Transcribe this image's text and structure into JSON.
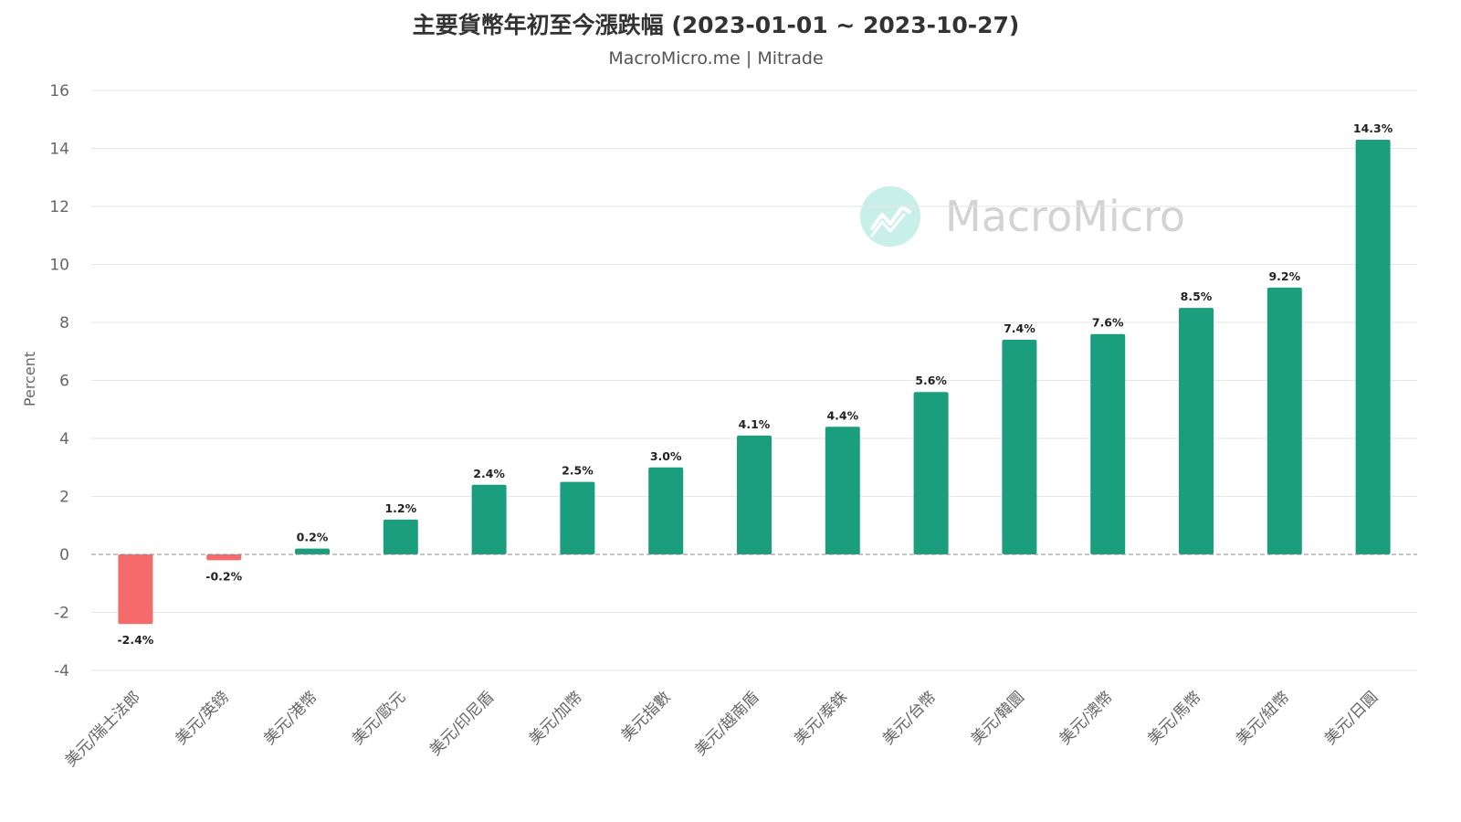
{
  "header": {
    "title": "主要貨幣年初至今漲跌幅 (2023-01-01 ~ 2023-10-27)",
    "subtitle": "MacroMicro.me | Mitrade"
  },
  "watermark": {
    "text": "MacroMicro",
    "icon": "macromicro-logo-icon"
  },
  "colors": {
    "positive": "#1a9e7e",
    "negative": "#f56b6b",
    "grid": "#e6e6e6",
    "zero_line": "#888888"
  },
  "chart_data": {
    "type": "bar",
    "title": "主要貨幣年初至今漲跌幅 (2023-01-01 ~ 2023-10-27)",
    "subtitle": "MacroMicro.me | Mitrade",
    "ylabel": "Percent",
    "xlabel": "",
    "ylim": [
      -4,
      16
    ],
    "yticks": [
      "16",
      "14",
      "12",
      "10",
      "8",
      "6",
      "4",
      "2",
      "0",
      "-2",
      "-4"
    ],
    "grid": true,
    "legend": "none",
    "categories": [
      "美元/瑞士法郎",
      "美元/英鎊",
      "美元/港幣",
      "美元/歐元",
      "美元/印尼盾",
      "美元/加幣",
      "美元指數",
      "美元/越南盾",
      "美元/泰銖",
      "美元/台幣",
      "美元/韓圜",
      "美元/澳幣",
      "美元/馬幣",
      "美元/紐幣",
      "美元/日圓"
    ],
    "values": [
      -2.4,
      -0.2,
      0.2,
      1.2,
      2.4,
      2.5,
      3.0,
      4.1,
      4.4,
      5.6,
      7.4,
      7.6,
      8.5,
      9.2,
      14.3
    ],
    "data_labels": [
      "-2.4%",
      "-0.2%",
      "0.2%",
      "1.2%",
      "2.4%",
      "2.5%",
      "3.0%",
      "4.1%",
      "4.4%",
      "5.6%",
      "7.4%",
      "7.6%",
      "8.5%",
      "9.2%",
      "14.3%"
    ]
  }
}
